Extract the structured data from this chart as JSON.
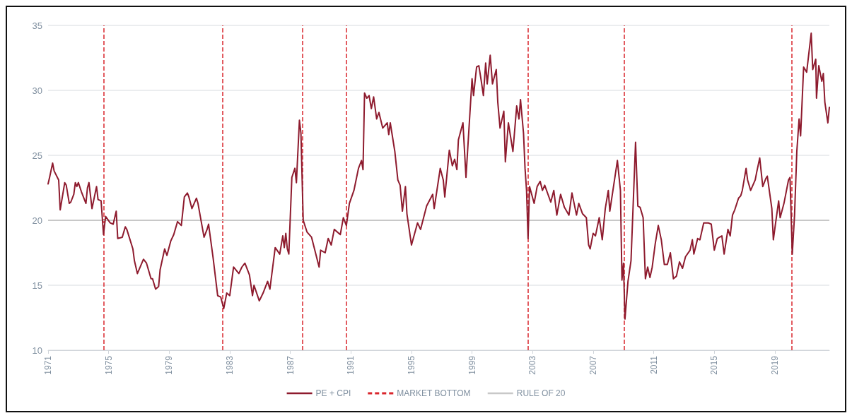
{
  "chart_data": {
    "type": "line",
    "xlim": [
      1971,
      2022.6
    ],
    "xticks": [
      1971,
      1975,
      1979,
      1983,
      1987,
      1991,
      1995,
      1999,
      2003,
      2007,
      2011,
      2015,
      2019
    ],
    "ylim": [
      10,
      35
    ],
    "yticks": [
      10,
      15,
      20,
      25,
      30,
      35
    ],
    "grid": "y",
    "legend": "bottom",
    "marker": "none",
    "line_style": "solid",
    "series": [
      {
        "name": "PE + CPI",
        "color": "#8e1b2e",
        "x": [
          1971.0,
          1971.1,
          1971.3,
          1971.4,
          1971.7,
          1971.8,
          1972.1,
          1972.2,
          1972.4,
          1972.5,
          1972.7,
          1972.8,
          1972.9,
          1973.0,
          1973.2,
          1973.5,
          1973.6,
          1973.7,
          1973.9,
          1974.2,
          1974.3,
          1974.5,
          1974.66,
          1974.8,
          1975.1,
          1975.3,
          1975.5,
          1975.6,
          1975.9,
          1976.1,
          1976.2,
          1976.6,
          1976.7,
          1976.9,
          1977.3,
          1977.5,
          1977.8,
          1977.9,
          1978.1,
          1978.3,
          1978.4,
          1978.7,
          1978.85,
          1979.1,
          1979.3,
          1979.55,
          1979.8,
          1980.0,
          1980.2,
          1980.3,
          1980.5,
          1980.8,
          1980.9,
          1981.3,
          1981.5,
          1981.6,
          1981.9,
          1982.2,
          1982.4,
          1982.6,
          1982.8,
          1983.0,
          1983.25,
          1983.6,
          1983.8,
          1984.0,
          1984.3,
          1984.5,
          1984.6,
          1984.95,
          1985.2,
          1985.5,
          1985.65,
          1986.0,
          1986.3,
          1986.5,
          1986.6,
          1986.7,
          1986.8,
          1986.9,
          1987.1,
          1987.3,
          1987.4,
          1987.6,
          1987.7,
          1987.85,
          1988.1,
          1988.4,
          1988.9,
          1989.0,
          1989.3,
          1989.5,
          1989.7,
          1989.9,
          1990.3,
          1990.5,
          1990.7,
          1990.9,
          1991.2,
          1991.5,
          1991.7,
          1991.8,
          1991.9,
          1992.05,
          1992.2,
          1992.35,
          1992.5,
          1992.7,
          1992.85,
          1993.1,
          1993.4,
          1993.5,
          1993.6,
          1993.9,
          1994.1,
          1994.25,
          1994.4,
          1994.6,
          1994.7,
          1995.0,
          1995.4,
          1995.6,
          1996.0,
          1996.4,
          1996.5,
          1996.9,
          1997.1,
          1997.2,
          1997.5,
          1997.7,
          1997.85,
          1998.0,
          1998.1,
          1998.4,
          1998.6,
          1999.0,
          1999.1,
          1999.3,
          1999.45,
          1999.6,
          1999.75,
          1999.9,
          2000.0,
          2000.2,
          2000.35,
          2000.6,
          2000.7,
          2000.85,
          2001.1,
          2001.2,
          2001.4,
          2001.7,
          2001.95,
          2002.1,
          2002.2,
          2002.4,
          2002.5,
          2002.6,
          2002.7,
          2002.8,
          2003.1,
          2003.3,
          2003.5,
          2003.65,
          2003.8,
          2004.2,
          2004.4,
          2004.6,
          2004.85,
          2005.1,
          2005.4,
          2005.6,
          2005.9,
          2006.05,
          2006.3,
          2006.55,
          2006.7,
          2006.8,
          2007.0,
          2007.15,
          2007.4,
          2007.6,
          2007.8,
          2008.0,
          2008.1,
          2008.6,
          2008.8,
          2008.9,
          2009.0,
          2009.1,
          2009.3,
          2009.5,
          2009.8,
          2009.95,
          2010.1,
          2010.3,
          2010.45,
          2010.6,
          2010.75,
          2010.9,
          2011.1,
          2011.3,
          2011.5,
          2011.7,
          2011.9,
          2012.1,
          2012.3,
          2012.5,
          2012.7,
          2012.9,
          2013.1,
          2013.4,
          2013.55,
          2013.65,
          2013.9,
          2014.05,
          2014.3,
          2014.6,
          2014.8,
          2015.0,
          2015.2,
          2015.5,
          2015.65,
          2015.9,
          2016.05,
          2016.2,
          2016.35,
          2016.6,
          2016.75,
          2016.85,
          2017.1,
          2017.2,
          2017.4,
          2017.7,
          2017.8,
          2018.0,
          2018.2,
          2018.4,
          2018.5,
          2018.8,
          2018.9,
          2019.05,
          2019.25,
          2019.35,
          2019.6,
          2019.9,
          2020.0,
          2020.15,
          2020.3,
          2020.45,
          2020.6,
          2020.7,
          2020.9,
          2021.1,
          2021.2,
          2021.4,
          2021.5,
          2021.7,
          2021.75,
          2021.9,
          2022.1,
          2022.2,
          2022.3,
          2022.5,
          2022.6
        ],
        "values": [
          22.8,
          23.3,
          24.4,
          23.8,
          23.1,
          20.8,
          22.9,
          22.7,
          21.3,
          21.4,
          22.0,
          22.9,
          22.6,
          22.9,
          22.2,
          21.3,
          22.5,
          22.9,
          20.9,
          22.6,
          21.6,
          21.5,
          18.9,
          20.3,
          19.8,
          19.7,
          20.7,
          18.6,
          18.7,
          19.5,
          19.3,
          17.8,
          16.9,
          15.9,
          17.0,
          16.7,
          15.5,
          15.5,
          14.7,
          14.9,
          16.2,
          17.8,
          17.3,
          18.4,
          18.9,
          19.9,
          19.6,
          21.8,
          22.1,
          21.8,
          20.9,
          21.7,
          21.3,
          18.7,
          19.3,
          19.7,
          17.1,
          14.2,
          14.1,
          13.2,
          14.4,
          14.2,
          16.4,
          15.9,
          16.4,
          16.7,
          15.8,
          14.2,
          15.0,
          13.8,
          14.4,
          15.3,
          14.7,
          17.9,
          17.4,
          18.8,
          17.9,
          19.0,
          17.8,
          17.4,
          23.3,
          24.0,
          22.9,
          27.7,
          26.7,
          20.0,
          19.1,
          18.7,
          16.4,
          17.7,
          17.5,
          18.6,
          18.1,
          19.3,
          18.9,
          20.2,
          19.6,
          21.3,
          22.3,
          24.0,
          24.6,
          23.9,
          29.8,
          29.4,
          29.6,
          28.6,
          29.5,
          27.8,
          28.3,
          27.1,
          27.5,
          26.6,
          27.5,
          25.3,
          23.1,
          22.7,
          20.7,
          22.6,
          20.5,
          18.1,
          19.8,
          19.3,
          21.1,
          22.0,
          20.9,
          24.0,
          23.1,
          21.8,
          25.4,
          24.2,
          24.7,
          23.9,
          26.2,
          27.5,
          23.3,
          30.9,
          29.6,
          31.8,
          31.9,
          30.8,
          29.6,
          32.1,
          30.5,
          32.7,
          30.5,
          31.6,
          29.1,
          27.1,
          28.4,
          24.5,
          27.5,
          25.3,
          28.8,
          27.8,
          29.3,
          26.7,
          24.0,
          22.3,
          18.6,
          22.6,
          21.3,
          22.6,
          23.0,
          22.3,
          22.7,
          21.4,
          22.3,
          20.4,
          22.0,
          21.0,
          20.4,
          22.1,
          20.4,
          21.3,
          20.5,
          20.2,
          18.1,
          17.8,
          19.0,
          18.8,
          20.2,
          18.5,
          20.9,
          22.3,
          20.7,
          24.6,
          22.3,
          15.4,
          16.7,
          12.4,
          15.3,
          16.9,
          26.0,
          21.1,
          21.0,
          20.2,
          15.5,
          16.4,
          15.6,
          16.4,
          18.2,
          19.6,
          18.5,
          16.6,
          16.6,
          17.5,
          15.5,
          15.7,
          16.8,
          16.3,
          17.2,
          17.7,
          18.5,
          17.4,
          18.6,
          18.5,
          19.8,
          19.8,
          19.7,
          17.7,
          18.6,
          18.8,
          17.4,
          19.3,
          18.8,
          20.4,
          20.8,
          21.7,
          21.9,
          22.3,
          24.0,
          23.1,
          22.3,
          23.1,
          23.7,
          24.8,
          22.6,
          23.2,
          23.4,
          20.9,
          18.5,
          19.8,
          21.5,
          20.2,
          21.3,
          23.1,
          23.3,
          17.4,
          20.4,
          25.3,
          27.8,
          26.5,
          31.8,
          31.4,
          32.4,
          34.4,
          31.6,
          32.4,
          29.4,
          31.9,
          30.7,
          31.3,
          29.1,
          27.5,
          28.7
        ]
      }
    ],
    "ref_lines": [
      {
        "axis": "x",
        "value": 1974.7,
        "label": "MARKET BOTTOM",
        "color": "#d9262c",
        "line_style": "dashed"
      },
      {
        "axis": "x",
        "value": 1982.5,
        "color": "#d9262c",
        "line_style": "dashed"
      },
      {
        "axis": "x",
        "value": 1987.8,
        "color": "#d9262c",
        "line_style": "dashed"
      },
      {
        "axis": "x",
        "value": 1990.7,
        "color": "#d9262c",
        "line_style": "dashed"
      },
      {
        "axis": "x",
        "value": 2002.7,
        "color": "#d9262c",
        "line_style": "dashed"
      },
      {
        "axis": "x",
        "value": 2009.05,
        "color": "#d9262c",
        "line_style": "dashed"
      },
      {
        "axis": "x",
        "value": 2020.1,
        "color": "#d9262c",
        "line_style": "dashed"
      },
      {
        "axis": "y",
        "value": 20,
        "label": "RULE OF 20",
        "color": "#c8c8c8",
        "line_style": "solid"
      }
    ]
  }
}
